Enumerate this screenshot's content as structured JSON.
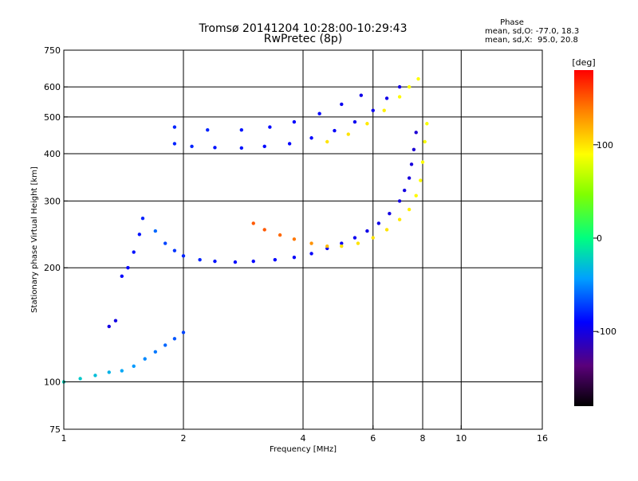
{
  "chart_data": {
    "type": "scatter",
    "title": "Tromsø 20141204 10:28:00-10:29:43",
    "subtitle": "RwPretec (8p)",
    "xlabel": "Frequency [MHz]",
    "ylabel": "Stationary phase Virtual Height [km]",
    "x_scale": "log",
    "y_scale": "log",
    "xlim": [
      1,
      16
    ],
    "ylim": [
      75,
      750
    ],
    "x_ticks": [
      {
        "value": 1,
        "label": "1"
      },
      {
        "value": 2,
        "label": "2"
      },
      {
        "value": 4,
        "label": "4"
      },
      {
        "value": 6,
        "label": "6"
      },
      {
        "value": 8,
        "label": "8"
      },
      {
        "value": 10,
        "label": "10"
      },
      {
        "value": 16,
        "label": "16"
      }
    ],
    "y_ticks": [
      {
        "value": 75,
        "label": "75"
      },
      {
        "value": 100,
        "label": "100"
      },
      {
        "value": 200,
        "label": "200"
      },
      {
        "value": 300,
        "label": "300"
      },
      {
        "value": 400,
        "label": "400"
      },
      {
        "value": 500,
        "label": "500"
      },
      {
        "value": 600,
        "label": "600"
      },
      {
        "value": 750,
        "label": "750"
      }
    ],
    "grid_x": [
      2,
      4,
      6,
      8,
      10
    ],
    "grid_y": [
      100,
      200,
      300,
      400,
      500,
      600
    ],
    "stats": {
      "heading": "Phase",
      "line_o": "mean, sd,O: -77.0, 18.3",
      "line_x": "mean, sd,X:  95.0, 20.8"
    },
    "colorbar": {
      "label": "[deg]",
      "range": [
        -180,
        180
      ],
      "ticks": [
        {
          "value": 100,
          "label": "100"
        },
        {
          "value": 0,
          "label": "0"
        },
        {
          "value": -100,
          "label": "-100"
        }
      ]
    },
    "series": [
      {
        "role": "O-mode F-layer trace",
        "points": [
          [
            1.7,
            250,
            -60
          ],
          [
            1.8,
            232,
            -70
          ],
          [
            1.9,
            222,
            -75
          ],
          [
            2.0,
            215,
            -80
          ],
          [
            2.2,
            210,
            -80
          ],
          [
            2.4,
            208,
            -85
          ],
          [
            2.7,
            207,
            -88
          ],
          [
            3.0,
            208,
            -90
          ],
          [
            3.4,
            210,
            -90
          ],
          [
            3.8,
            213,
            -92
          ],
          [
            4.2,
            218,
            -92
          ],
          [
            4.6,
            225,
            -95
          ],
          [
            5.0,
            232,
            -95
          ],
          [
            5.4,
            240,
            -95
          ],
          [
            5.8,
            250,
            -98
          ],
          [
            6.2,
            262,
            -98
          ],
          [
            6.6,
            278,
            -100
          ],
          [
            7.0,
            300,
            -100
          ],
          [
            7.2,
            320,
            -100
          ],
          [
            7.4,
            345,
            -102
          ],
          [
            7.5,
            375,
            -102
          ],
          [
            7.6,
            410,
            -105
          ],
          [
            7.7,
            455,
            -105
          ]
        ]
      },
      {
        "role": "X-mode F-layer trace",
        "points": [
          [
            3.0,
            262,
            150
          ],
          [
            3.2,
            252,
            150
          ],
          [
            3.5,
            244,
            145
          ],
          [
            3.8,
            238,
            140
          ],
          [
            4.2,
            232,
            130
          ],
          [
            4.6,
            228,
            115
          ],
          [
            5.0,
            228,
            100
          ],
          [
            5.5,
            232,
            100
          ],
          [
            6.0,
            240,
            100
          ],
          [
            6.5,
            252,
            100
          ],
          [
            7.0,
            268,
            98
          ],
          [
            7.4,
            285,
            95
          ],
          [
            7.7,
            310,
            92
          ],
          [
            7.9,
            340,
            90
          ],
          [
            8.0,
            380,
            90
          ],
          [
            8.1,
            430,
            88
          ],
          [
            8.2,
            480,
            88
          ]
        ]
      },
      {
        "role": "multiple-reflection trace (O)",
        "points": [
          [
            1.9,
            425,
            -80
          ],
          [
            2.1,
            418,
            -80
          ],
          [
            2.4,
            415,
            -85
          ],
          [
            2.8,
            414,
            -85
          ],
          [
            3.2,
            418,
            -88
          ],
          [
            3.7,
            425,
            -90
          ],
          [
            4.2,
            440,
            -90
          ],
          [
            4.8,
            460,
            -92
          ],
          [
            5.4,
            485,
            -95
          ],
          [
            6.0,
            520,
            -95
          ],
          [
            6.5,
            560,
            -98
          ],
          [
            7.0,
            600,
            -100
          ]
        ]
      },
      {
        "role": "multiple-reflection trace (O, upper)",
        "points": [
          [
            1.9,
            470,
            -80
          ],
          [
            2.3,
            462,
            -80
          ],
          [
            2.8,
            462,
            -85
          ],
          [
            3.3,
            470,
            -88
          ],
          [
            3.8,
            485,
            -90
          ],
          [
            4.4,
            510,
            -90
          ],
          [
            5.0,
            540,
            -95
          ],
          [
            5.6,
            570,
            -98
          ]
        ]
      },
      {
        "role": "multiple-reflection trace (X)",
        "points": [
          [
            4.6,
            430,
            100
          ],
          [
            5.2,
            450,
            100
          ],
          [
            5.8,
            480,
            98
          ],
          [
            6.4,
            520,
            95
          ],
          [
            7.0,
            565,
            92
          ],
          [
            7.4,
            600,
            90
          ],
          [
            7.8,
            630,
            90
          ]
        ]
      },
      {
        "role": "low-frequency echoes",
        "points": [
          [
            1.0,
            100,
            -20
          ],
          [
            1.1,
            102,
            -25
          ],
          [
            1.2,
            104,
            -30
          ],
          [
            1.3,
            106,
            -35
          ],
          [
            1.4,
            107,
            -40
          ],
          [
            1.5,
            110,
            -45
          ],
          [
            1.6,
            115,
            -50
          ],
          [
            1.7,
            120,
            -55
          ],
          [
            1.8,
            125,
            -60
          ],
          [
            1.9,
            130,
            -65
          ],
          [
            2.0,
            135,
            -70
          ]
        ]
      },
      {
        "role": "E-region spread echoes",
        "points": [
          [
            1.4,
            190,
            -90
          ],
          [
            1.45,
            200,
            -90
          ],
          [
            1.5,
            220,
            -85
          ],
          [
            1.55,
            245,
            -85
          ],
          [
            1.58,
            270,
            -80
          ],
          [
            1.35,
            145,
            -100
          ],
          [
            1.3,
            140,
            -100
          ]
        ]
      }
    ]
  }
}
